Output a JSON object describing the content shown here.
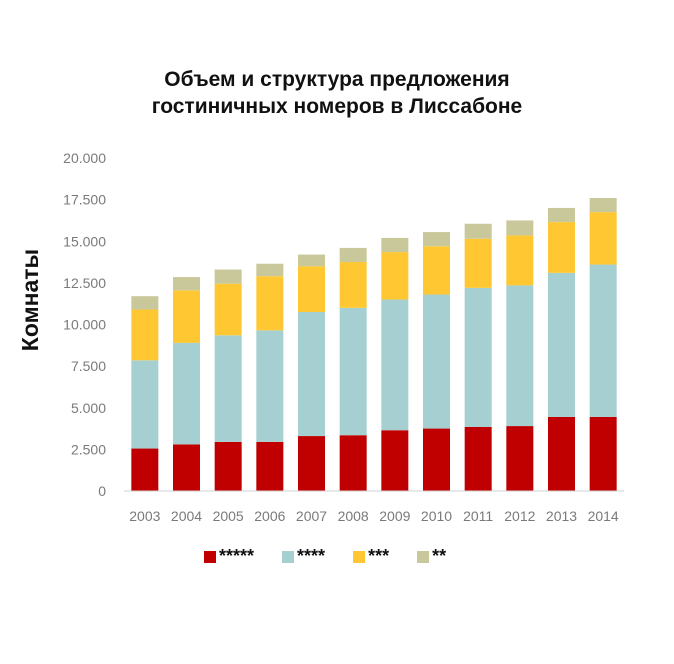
{
  "chart_data": {
    "type": "bar",
    "stacked": true,
    "title_lines": [
      "Объем и структура предложения",
      "гостиничных номеров в Лиссабоне"
    ],
    "ylabel": "Комнаты",
    "xlabel": "",
    "ylim": [
      0,
      20000
    ],
    "yticks": [
      "0",
      "2.500",
      "5.000",
      "7.500",
      "10.000",
      "12.500",
      "15.000",
      "17.500",
      "20.000"
    ],
    "ytick_values": [
      0,
      2500,
      5000,
      7500,
      10000,
      12500,
      15000,
      17500,
      20000
    ],
    "categories": [
      "2003",
      "2004",
      "2005",
      "2006",
      "2007",
      "2008",
      "2009",
      "2010",
      "2011",
      "2012",
      "2013",
      "2014"
    ],
    "series": [
      {
        "name": "*****",
        "color": "#c00000",
        "values": [
          2550,
          2800,
          2950,
          2950,
          3300,
          3350,
          3650,
          3750,
          3850,
          3900,
          4450,
          4450
        ]
      },
      {
        "name": "****",
        "color": "#a5cfd1",
        "values": [
          5300,
          6100,
          6400,
          6700,
          7450,
          7650,
          7850,
          8050,
          8350,
          8450,
          8650,
          9150
        ]
      },
      {
        "name": "***",
        "color": "#ffc832",
        "values": [
          3050,
          3150,
          3100,
          3250,
          2750,
          2750,
          2850,
          2900,
          2950,
          3000,
          3050,
          3150
        ]
      },
      {
        "name": "**",
        "color": "#c8c89a",
        "values": [
          800,
          800,
          850,
          750,
          700,
          850,
          850,
          850,
          900,
          900,
          850,
          850
        ]
      }
    ],
    "legend_position": "bottom",
    "grid": false
  }
}
